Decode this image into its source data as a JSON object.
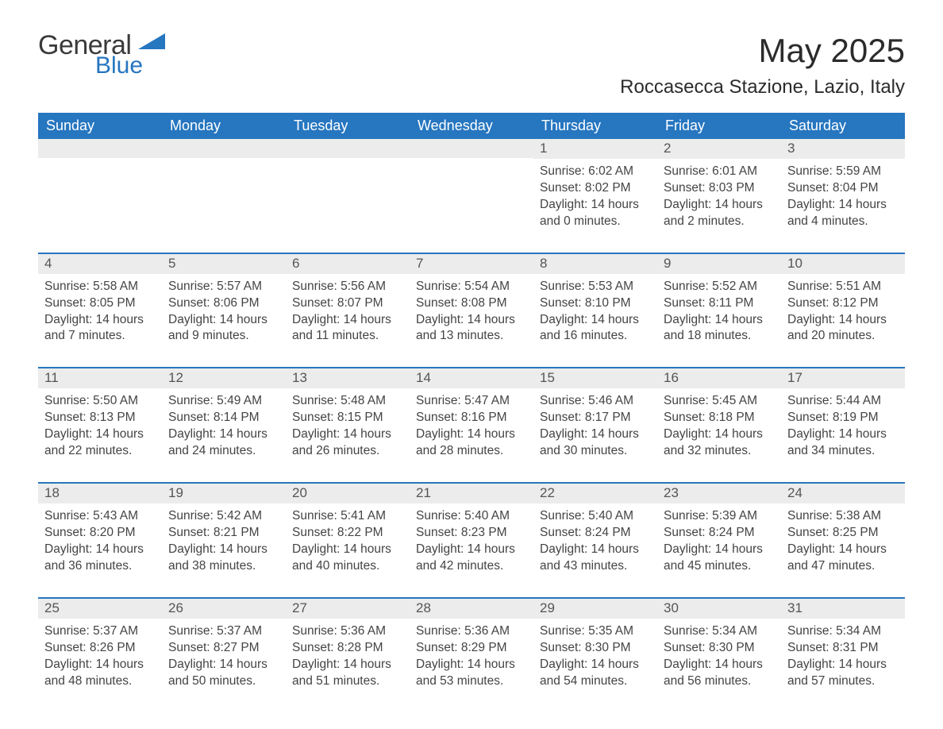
{
  "logo": {
    "word1": "General",
    "word2": "Blue"
  },
  "title": "May 2025",
  "location": "Roccasecca Stazione, Lazio, Italy",
  "colors": {
    "header_bg": "#2676c0",
    "header_text": "#ffffff",
    "daynum_bg": "#ececec",
    "rule": "#2676c0",
    "text": "#444444",
    "logo_blue": "#2676c0",
    "logo_gray": "#3a3a3a"
  },
  "day_labels": [
    "Sunday",
    "Monday",
    "Tuesday",
    "Wednesday",
    "Thursday",
    "Friday",
    "Saturday"
  ],
  "weeks": [
    [
      null,
      null,
      null,
      null,
      {
        "n": "1",
        "sunrise": "6:02 AM",
        "sunset": "8:02 PM",
        "daylight": "14 hours and 0 minutes."
      },
      {
        "n": "2",
        "sunrise": "6:01 AM",
        "sunset": "8:03 PM",
        "daylight": "14 hours and 2 minutes."
      },
      {
        "n": "3",
        "sunrise": "5:59 AM",
        "sunset": "8:04 PM",
        "daylight": "14 hours and 4 minutes."
      }
    ],
    [
      {
        "n": "4",
        "sunrise": "5:58 AM",
        "sunset": "8:05 PM",
        "daylight": "14 hours and 7 minutes."
      },
      {
        "n": "5",
        "sunrise": "5:57 AM",
        "sunset": "8:06 PM",
        "daylight": "14 hours and 9 minutes."
      },
      {
        "n": "6",
        "sunrise": "5:56 AM",
        "sunset": "8:07 PM",
        "daylight": "14 hours and 11 minutes."
      },
      {
        "n": "7",
        "sunrise": "5:54 AM",
        "sunset": "8:08 PM",
        "daylight": "14 hours and 13 minutes."
      },
      {
        "n": "8",
        "sunrise": "5:53 AM",
        "sunset": "8:10 PM",
        "daylight": "14 hours and 16 minutes."
      },
      {
        "n": "9",
        "sunrise": "5:52 AM",
        "sunset": "8:11 PM",
        "daylight": "14 hours and 18 minutes."
      },
      {
        "n": "10",
        "sunrise": "5:51 AM",
        "sunset": "8:12 PM",
        "daylight": "14 hours and 20 minutes."
      }
    ],
    [
      {
        "n": "11",
        "sunrise": "5:50 AM",
        "sunset": "8:13 PM",
        "daylight": "14 hours and 22 minutes."
      },
      {
        "n": "12",
        "sunrise": "5:49 AM",
        "sunset": "8:14 PM",
        "daylight": "14 hours and 24 minutes."
      },
      {
        "n": "13",
        "sunrise": "5:48 AM",
        "sunset": "8:15 PM",
        "daylight": "14 hours and 26 minutes."
      },
      {
        "n": "14",
        "sunrise": "5:47 AM",
        "sunset": "8:16 PM",
        "daylight": "14 hours and 28 minutes."
      },
      {
        "n": "15",
        "sunrise": "5:46 AM",
        "sunset": "8:17 PM",
        "daylight": "14 hours and 30 minutes."
      },
      {
        "n": "16",
        "sunrise": "5:45 AM",
        "sunset": "8:18 PM",
        "daylight": "14 hours and 32 minutes."
      },
      {
        "n": "17",
        "sunrise": "5:44 AM",
        "sunset": "8:19 PM",
        "daylight": "14 hours and 34 minutes."
      }
    ],
    [
      {
        "n": "18",
        "sunrise": "5:43 AM",
        "sunset": "8:20 PM",
        "daylight": "14 hours and 36 minutes."
      },
      {
        "n": "19",
        "sunrise": "5:42 AM",
        "sunset": "8:21 PM",
        "daylight": "14 hours and 38 minutes."
      },
      {
        "n": "20",
        "sunrise": "5:41 AM",
        "sunset": "8:22 PM",
        "daylight": "14 hours and 40 minutes."
      },
      {
        "n": "21",
        "sunrise": "5:40 AM",
        "sunset": "8:23 PM",
        "daylight": "14 hours and 42 minutes."
      },
      {
        "n": "22",
        "sunrise": "5:40 AM",
        "sunset": "8:24 PM",
        "daylight": "14 hours and 43 minutes."
      },
      {
        "n": "23",
        "sunrise": "5:39 AM",
        "sunset": "8:24 PM",
        "daylight": "14 hours and 45 minutes."
      },
      {
        "n": "24",
        "sunrise": "5:38 AM",
        "sunset": "8:25 PM",
        "daylight": "14 hours and 47 minutes."
      }
    ],
    [
      {
        "n": "25",
        "sunrise": "5:37 AM",
        "sunset": "8:26 PM",
        "daylight": "14 hours and 48 minutes."
      },
      {
        "n": "26",
        "sunrise": "5:37 AM",
        "sunset": "8:27 PM",
        "daylight": "14 hours and 50 minutes."
      },
      {
        "n": "27",
        "sunrise": "5:36 AM",
        "sunset": "8:28 PM",
        "daylight": "14 hours and 51 minutes."
      },
      {
        "n": "28",
        "sunrise": "5:36 AM",
        "sunset": "8:29 PM",
        "daylight": "14 hours and 53 minutes."
      },
      {
        "n": "29",
        "sunrise": "5:35 AM",
        "sunset": "8:30 PM",
        "daylight": "14 hours and 54 minutes."
      },
      {
        "n": "30",
        "sunrise": "5:34 AM",
        "sunset": "8:30 PM",
        "daylight": "14 hours and 56 minutes."
      },
      {
        "n": "31",
        "sunrise": "5:34 AM",
        "sunset": "8:31 PM",
        "daylight": "14 hours and 57 minutes."
      }
    ]
  ],
  "field_labels": {
    "sunrise": "Sunrise",
    "sunset": "Sunset",
    "daylight": "Daylight"
  }
}
